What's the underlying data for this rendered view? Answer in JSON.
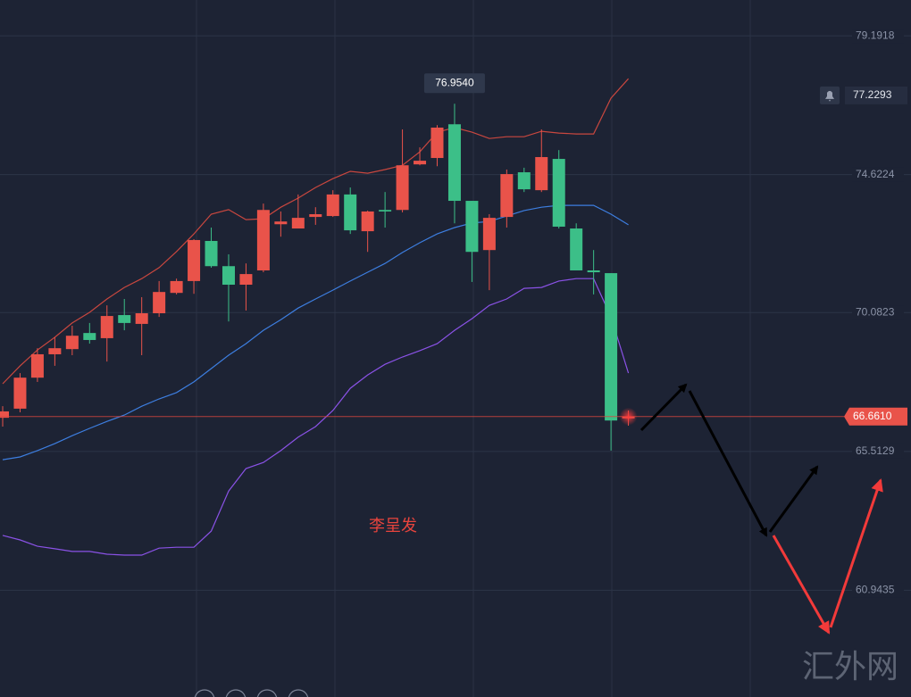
{
  "chart_data": {
    "type": "candlestick",
    "open": [
      66.62,
      66.92,
      67.94,
      68.71,
      68.88,
      69.41,
      69.24,
      70.0,
      69.71,
      70.06,
      70.73,
      71.12,
      72.44,
      71.61,
      71.0,
      71.47,
      72.99,
      72.85,
      73.23,
      73.26,
      73.97,
      72.76,
      73.46,
      73.46,
      74.96,
      75.17,
      76.28,
      73.76,
      72.14,
      73.23,
      74.7,
      74.11,
      75.14,
      72.85,
      71.47,
      71.38,
      66.6
    ],
    "high": [
      67.0,
      68.09,
      68.91,
      69.27,
      69.65,
      69.74,
      70.32,
      70.53,
      70.59,
      71.12,
      71.2,
      72.5,
      72.88,
      72.0,
      71.7,
      73.67,
      73.41,
      73.97,
      73.55,
      74.11,
      74.2,
      73.44,
      74.05,
      76.11,
      75.52,
      76.25,
      76.954,
      73.76,
      73.32,
      74.79,
      74.85,
      76.11,
      75.43,
      73.02,
      72.14,
      71.38,
      66.86
    ],
    "low": [
      66.33,
      66.8,
      67.8,
      68.33,
      68.68,
      69.06,
      68.47,
      69.5,
      68.68,
      69.94,
      70.68,
      70.7,
      71.56,
      69.79,
      70.15,
      71.41,
      72.58,
      72.85,
      72.97,
      73.23,
      72.67,
      72.08,
      72.88,
      73.38,
      74.93,
      74.9,
      73.02,
      71.09,
      70.82,
      72.88,
      74.05,
      74.05,
      72.85,
      71.47,
      70.68,
      65.54,
      66.36
    ],
    "close": [
      66.83,
      67.94,
      68.71,
      68.91,
      69.32,
      69.18,
      69.97,
      69.74,
      70.06,
      70.76,
      71.12,
      72.47,
      71.61,
      71.0,
      71.35,
      73.46,
      73.08,
      73.2,
      73.32,
      73.97,
      72.79,
      73.41,
      73.41,
      74.93,
      75.08,
      76.17,
      73.76,
      72.08,
      73.2,
      74.64,
      74.14,
      75.2,
      72.91,
      71.47,
      71.41,
      66.53,
      66.661
    ],
    "up_color": "#e9534a",
    "down_color": "#3cbf88",
    "overlays": [
      {
        "color": "#c9473f",
        "values": [
          67.74,
          68.33,
          68.85,
          69.27,
          69.74,
          70.09,
          70.53,
          70.91,
          71.2,
          71.56,
          72.09,
          72.67,
          73.32,
          73.47,
          73.14,
          73.17,
          73.55,
          73.85,
          74.2,
          74.49,
          74.73,
          74.67,
          74.79,
          74.93,
          75.37,
          76.02,
          76.17,
          76.02,
          75.81,
          75.87,
          75.87,
          76.05,
          75.99,
          75.96,
          75.96,
          77.14,
          77.78
        ]
      },
      {
        "color": "#3d7ee0",
        "values": [
          65.24,
          65.33,
          65.54,
          65.77,
          66.03,
          66.27,
          66.5,
          66.71,
          67.0,
          67.24,
          67.45,
          67.8,
          68.24,
          68.68,
          69.06,
          69.5,
          69.85,
          70.23,
          70.53,
          70.82,
          71.12,
          71.41,
          71.7,
          72.06,
          72.38,
          72.67,
          72.88,
          73.03,
          73.08,
          73.26,
          73.44,
          73.55,
          73.61,
          73.61,
          73.61,
          73.32,
          72.97
        ]
      },
      {
        "color": "#8a52e6",
        "values": [
          62.75,
          62.6,
          62.39,
          62.31,
          62.22,
          62.22,
          62.13,
          62.1,
          62.1,
          62.33,
          62.36,
          62.36,
          62.89,
          64.21,
          64.95,
          65.15,
          65.54,
          65.98,
          66.33,
          66.86,
          67.59,
          68.03,
          68.38,
          68.62,
          68.83,
          69.06,
          69.5,
          69.88,
          70.32,
          70.53,
          70.88,
          70.91,
          71.12,
          71.2,
          71.2,
          69.94,
          68.09
        ]
      }
    ],
    "ylim": [
      57.43,
      80.37
    ],
    "yticks": [
      79.1918,
      74.6224,
      70.0823,
      65.5129,
      60.9435
    ],
    "grid": true,
    "current_price": {
      "value": 66.661,
      "label": "66.6610"
    },
    "alert_price": 77.2293,
    "max_marker": {
      "value": 76.954,
      "label": "76.9540"
    },
    "annotation": "李呈发",
    "watermark": "汇外网"
  }
}
